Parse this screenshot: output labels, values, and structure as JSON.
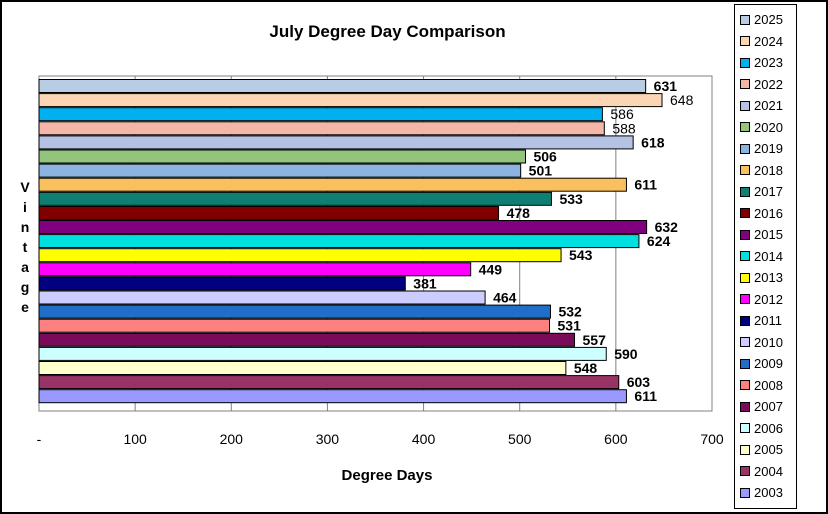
{
  "chart_data": {
    "type": "bar",
    "orientation": "horizontal",
    "title": "July Degree Day Comparison",
    "xlabel": "Degree Days",
    "ylabel": "Vintage",
    "xlim": [
      0,
      700
    ],
    "x_ticks": [
      "-",
      "100",
      "200",
      "300",
      "400",
      "500",
      "600",
      "700"
    ],
    "grid": true,
    "legend_position": "right",
    "series": [
      {
        "name": "2025",
        "value": 631,
        "label": "631",
        "color": "#b8cce4",
        "bold": true
      },
      {
        "name": "2024",
        "value": 648,
        "label": "648",
        "color": "#fcd5b4",
        "bold": false
      },
      {
        "name": "2023",
        "value": 586,
        "label": "586",
        "color": "#00b0f0",
        "bold": false
      },
      {
        "name": "2022",
        "value": 588,
        "label": "588",
        "color": "#f4b6a6",
        "bold": false
      },
      {
        "name": "2021",
        "value": 618,
        "label": "618",
        "color": "#b4c2e4",
        "bold": true
      },
      {
        "name": "2020",
        "value": 506,
        "label": "506",
        "color": "#92c47c",
        "bold": true
      },
      {
        "name": "2019",
        "value": 501,
        "label": "501",
        "color": "#8db3e2",
        "bold": true
      },
      {
        "name": "2018",
        "value": 611,
        "label": "611",
        "color": "#fac05e",
        "bold": true
      },
      {
        "name": "2017",
        "value": 533,
        "label": "533",
        "color": "#0f7f74",
        "bold": true
      },
      {
        "name": "2016",
        "value": 478,
        "label": "478",
        "color": "#800000",
        "bold": true
      },
      {
        "name": "2015",
        "value": 632,
        "label": "632",
        "color": "#800080",
        "bold": true
      },
      {
        "name": "2014",
        "value": 624,
        "label": "624",
        "color": "#00e0e0",
        "bold": true
      },
      {
        "name": "2013",
        "value": 543,
        "label": "543",
        "color": "#ffff00",
        "bold": true
      },
      {
        "name": "2012",
        "value": 449,
        "label": "449",
        "color": "#ff00ff",
        "bold": true
      },
      {
        "name": "2011",
        "value": 381,
        "label": "381",
        "color": "#000080",
        "bold": true
      },
      {
        "name": "2010",
        "value": 464,
        "label": "464",
        "color": "#ccccff",
        "bold": true
      },
      {
        "name": "2009",
        "value": 532,
        "label": "532",
        "color": "#1f6ec9",
        "bold": true
      },
      {
        "name": "2008",
        "value": 531,
        "label": "531",
        "color": "#ff8080",
        "bold": true
      },
      {
        "name": "2007",
        "value": 557,
        "label": "557",
        "color": "#7a0a5a",
        "bold": true
      },
      {
        "name": "2006",
        "value": 590,
        "label": "590",
        "color": "#ccffff",
        "bold": true
      },
      {
        "name": "2005",
        "value": 548,
        "label": "548",
        "color": "#ffffcc",
        "bold": true
      },
      {
        "name": "2004",
        "value": 603,
        "label": "603",
        "color": "#993366",
        "bold": true
      },
      {
        "name": "2003",
        "value": 611,
        "label": "611",
        "color": "#9999ff",
        "bold": true
      }
    ]
  }
}
